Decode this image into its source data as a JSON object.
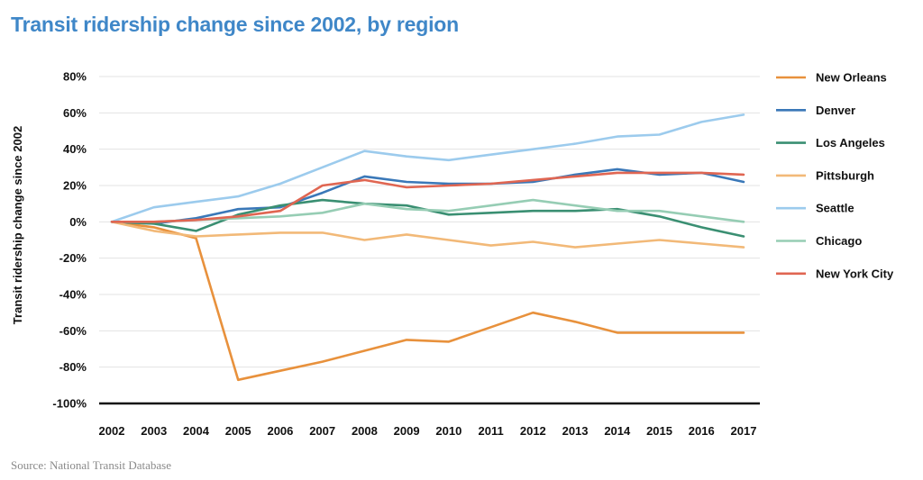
{
  "title": "Transit ridership change since 2002, by region",
  "source": "Source: National Transit Database",
  "chart_data": {
    "type": "line",
    "ylabel": "Transit ridership change since 2002",
    "xlabel": "",
    "ylim": [
      -100,
      80
    ],
    "yticks": [
      80,
      60,
      40,
      20,
      0,
      -20,
      -40,
      -60,
      -80,
      -100
    ],
    "ytick_labels": [
      "80%",
      "60%",
      "40%",
      "20%",
      "0%",
      "-20%",
      "-40%",
      "-60%",
      "-80%",
      "-100%"
    ],
    "x": [
      "2002",
      "2003",
      "2004",
      "2005",
      "2006",
      "2007",
      "2008",
      "2009",
      "2010",
      "2011",
      "2012",
      "2013",
      "2014",
      "2015",
      "2016",
      "2017"
    ],
    "grid": true,
    "legend_position": "right",
    "series": [
      {
        "name": "New Orleans",
        "color": "#e8913c",
        "values": [
          0,
          -3,
          -9,
          -87,
          -82,
          -77,
          -71,
          -65,
          -66,
          -58,
          -50,
          -55,
          -61,
          -61,
          -61,
          -61
        ]
      },
      {
        "name": "Denver",
        "color": "#3a78b8",
        "values": [
          0,
          -1,
          2,
          7,
          8,
          16,
          25,
          22,
          21,
          21,
          22,
          26,
          29,
          26,
          27,
          22
        ]
      },
      {
        "name": "Los Angeles",
        "color": "#3a8f72",
        "values": [
          0,
          -1,
          -5,
          4,
          9,
          12,
          10,
          9,
          4,
          5,
          6,
          6,
          7,
          3,
          -3,
          -8
        ]
      },
      {
        "name": "Pittsburgh",
        "color": "#f2b978",
        "values": [
          0,
          -5,
          -8,
          -7,
          -6,
          -6,
          -10,
          -7,
          -10,
          -13,
          -11,
          -14,
          -12,
          -10,
          -12,
          -14
        ]
      },
      {
        "name": "Seattle",
        "color": "#9ccbed",
        "values": [
          0,
          8,
          11,
          14,
          21,
          30,
          39,
          36,
          34,
          37,
          40,
          43,
          47,
          48,
          55,
          59
        ]
      },
      {
        "name": "Chicago",
        "color": "#96cdb4",
        "values": [
          0,
          0,
          1,
          2,
          3,
          5,
          10,
          7,
          6,
          9,
          12,
          9,
          6,
          6,
          3,
          0
        ]
      },
      {
        "name": "New York City",
        "color": "#e06652",
        "values": [
          0,
          0,
          1,
          3,
          6,
          20,
          23,
          19,
          20,
          21,
          23,
          25,
          27,
          27,
          27,
          26
        ]
      }
    ]
  }
}
